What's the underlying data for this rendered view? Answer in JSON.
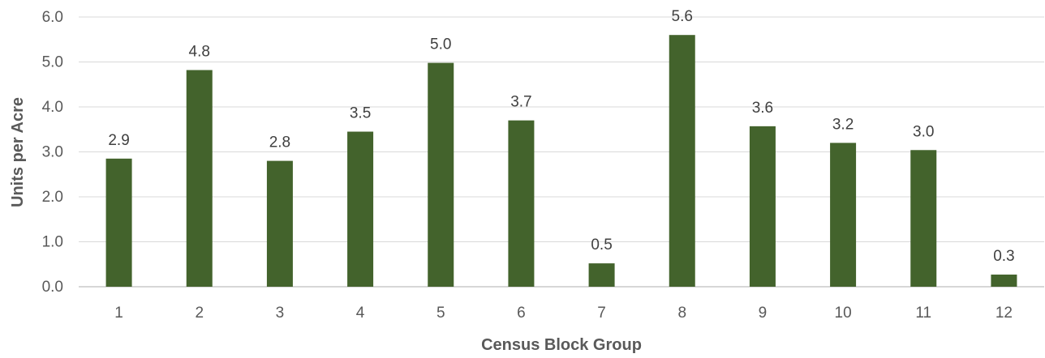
{
  "chart_data": {
    "type": "bar",
    "title": "",
    "xlabel": "Census Block Group",
    "ylabel": "Units per Acre",
    "categories": [
      "1",
      "2",
      "3",
      "4",
      "5",
      "6",
      "7",
      "8",
      "9",
      "10",
      "11",
      "12"
    ],
    "values": [
      2.85,
      4.82,
      2.8,
      3.45,
      4.98,
      3.7,
      0.52,
      5.6,
      3.57,
      3.2,
      3.04,
      0.27
    ],
    "data_labels": [
      "2.9",
      "4.8",
      "2.8",
      "3.5",
      "5.0",
      "3.7",
      "0.5",
      "5.6",
      "3.6",
      "3.2",
      "3.0",
      "0.3"
    ],
    "ylim": [
      0,
      6
    ],
    "yticks": [
      0,
      1,
      2,
      3,
      4,
      5,
      6
    ],
    "ytick_labels": [
      "0.0",
      "1.0",
      "2.0",
      "3.0",
      "4.0",
      "5.0",
      "6.0"
    ],
    "grid": true,
    "legend": "none",
    "bar_color": "#43632c"
  }
}
